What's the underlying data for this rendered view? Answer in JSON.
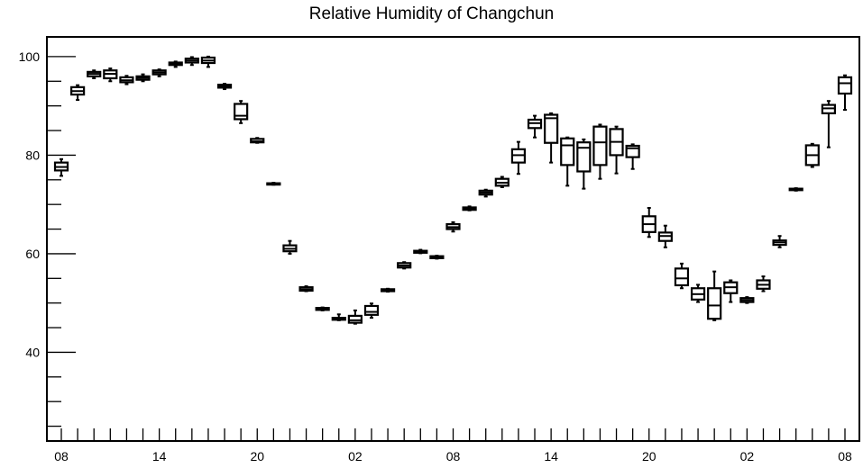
{
  "chart_data": {
    "type": "box",
    "title": "Relative Humidity of Changchun",
    "xlabel": "",
    "ylabel": "",
    "ylim": [
      22,
      104
    ],
    "xlim": [
      0,
      48
    ],
    "y_major_ticks": [
      40,
      60,
      80,
      100
    ],
    "y_minor_step": 5,
    "x_tick_labels": [
      {
        "hour": 0,
        "label": "08"
      },
      {
        "hour": 6,
        "label": "14"
      },
      {
        "hour": 12,
        "label": "20"
      },
      {
        "hour": 18,
        "label": "02"
      },
      {
        "hour": 24,
        "label": "08"
      },
      {
        "hour": 30,
        "label": "14"
      },
      {
        "hour": 36,
        "label": "20"
      },
      {
        "hour": 42,
        "label": "02"
      },
      {
        "hour": 48,
        "label": "08"
      }
    ],
    "boxes": [
      {
        "hour": 0,
        "min": 75.8,
        "q1": 76.9,
        "median": 77.6,
        "q3": 78.5,
        "max": 79.2
      },
      {
        "hour": 1,
        "min": 91.2,
        "q1": 92.3,
        "median": 93.0,
        "q3": 93.8,
        "max": 94.2
      },
      {
        "hour": 2,
        "min": 95.6,
        "q1": 96.0,
        "median": 96.5,
        "q3": 96.9,
        "max": 97.2
      },
      {
        "hour": 3,
        "min": 95.0,
        "q1": 95.6,
        "median": 96.5,
        "q3": 97.2,
        "max": 97.6
      },
      {
        "hour": 4,
        "min": 94.4,
        "q1": 94.8,
        "median": 95.2,
        "q3": 95.8,
        "max": 96.1
      },
      {
        "hour": 5,
        "min": 95.0,
        "q1": 95.3,
        "median": 95.7,
        "q3": 96.0,
        "max": 96.4
      },
      {
        "hour": 6,
        "min": 96.0,
        "q1": 96.4,
        "median": 96.8,
        "q3": 97.2,
        "max": 97.4
      },
      {
        "hour": 7,
        "min": 97.9,
        "q1": 98.3,
        "median": 98.6,
        "q3": 98.8,
        "max": 99.0
      },
      {
        "hour": 8,
        "min": 98.3,
        "q1": 98.8,
        "median": 99.2,
        "q3": 99.6,
        "max": 99.9
      },
      {
        "hour": 9,
        "min": 97.9,
        "q1": 98.7,
        "median": 99.2,
        "q3": 99.8,
        "max": 100.0
      },
      {
        "hour": 10,
        "min": 93.4,
        "q1": 93.7,
        "median": 94.0,
        "q3": 94.3,
        "max": 94.5
      },
      {
        "hour": 11,
        "min": 86.5,
        "q1": 87.3,
        "median": 88.0,
        "q3": 90.4,
        "max": 91.0
      },
      {
        "hour": 12,
        "min": 82.5,
        "q1": 82.6,
        "median": 82.8,
        "q3": 83.3,
        "max": 83.5
      },
      {
        "hour": 13,
        "min": 74.0,
        "q1": 74.1,
        "median": 74.2,
        "q3": 74.3,
        "max": 74.4
      },
      {
        "hour": 14,
        "min": 60.0,
        "q1": 60.5,
        "median": 61.0,
        "q3": 61.7,
        "max": 62.6
      },
      {
        "hour": 15,
        "min": 52.4,
        "q1": 52.5,
        "median": 52.8,
        "q3": 53.2,
        "max": 53.4
      },
      {
        "hour": 16,
        "min": 48.5,
        "q1": 48.6,
        "median": 48.8,
        "q3": 49.0,
        "max": 49.1
      },
      {
        "hour": 17,
        "min": 46.5,
        "q1": 46.6,
        "median": 46.8,
        "q3": 47.0,
        "max": 47.7
      },
      {
        "hour": 18,
        "min": 45.8,
        "q1": 46.0,
        "median": 46.5,
        "q3": 47.4,
        "max": 48.5
      },
      {
        "hour": 19,
        "min": 47.0,
        "q1": 47.6,
        "median": 48.2,
        "q3": 49.4,
        "max": 49.9
      },
      {
        "hour": 20,
        "min": 52.3,
        "q1": 52.4,
        "median": 52.6,
        "q3": 52.8,
        "max": 52.9
      },
      {
        "hour": 21,
        "min": 57.0,
        "q1": 57.2,
        "median": 57.6,
        "q3": 58.1,
        "max": 58.3
      },
      {
        "hour": 22,
        "min": 60.1,
        "q1": 60.2,
        "median": 60.4,
        "q3": 60.6,
        "max": 60.8
      },
      {
        "hour": 23,
        "min": 59.0,
        "q1": 59.1,
        "median": 59.3,
        "q3": 59.5,
        "max": 59.6
      },
      {
        "hour": 24,
        "min": 64.5,
        "q1": 65.0,
        "median": 65.4,
        "q3": 66.0,
        "max": 66.4
      },
      {
        "hour": 25,
        "min": 68.8,
        "q1": 68.9,
        "median": 69.1,
        "q3": 69.4,
        "max": 69.6
      },
      {
        "hour": 26,
        "min": 71.6,
        "q1": 72.0,
        "median": 72.4,
        "q3": 72.8,
        "max": 73.0
      },
      {
        "hour": 27,
        "min": 73.5,
        "q1": 73.8,
        "median": 74.4,
        "q3": 75.2,
        "max": 75.6
      },
      {
        "hour": 28,
        "min": 76.2,
        "q1": 78.5,
        "median": 80.0,
        "q3": 81.2,
        "max": 82.7
      },
      {
        "hour": 29,
        "min": 83.6,
        "q1": 85.5,
        "median": 86.5,
        "q3": 87.2,
        "max": 88.0
      },
      {
        "hour": 30,
        "min": 78.5,
        "q1": 82.5,
        "median": 87.5,
        "q3": 88.2,
        "max": 88.5
      },
      {
        "hour": 31,
        "min": 73.8,
        "q1": 78.0,
        "median": 82.0,
        "q3": 83.4,
        "max": 83.6
      },
      {
        "hour": 32,
        "min": 73.2,
        "q1": 76.7,
        "median": 81.5,
        "q3": 82.6,
        "max": 83.2
      },
      {
        "hour": 33,
        "min": 75.2,
        "q1": 78.0,
        "median": 82.6,
        "q3": 85.8,
        "max": 86.2
      },
      {
        "hour": 34,
        "min": 76.3,
        "q1": 80.0,
        "median": 82.7,
        "q3": 85.3,
        "max": 85.8
      },
      {
        "hour": 35,
        "min": 77.2,
        "q1": 79.6,
        "median": 81.4,
        "q3": 81.9,
        "max": 82.2
      },
      {
        "hour": 36,
        "min": 63.4,
        "q1": 64.4,
        "median": 66.0,
        "q3": 67.6,
        "max": 69.3
      },
      {
        "hour": 37,
        "min": 61.3,
        "q1": 62.6,
        "median": 63.6,
        "q3": 64.3,
        "max": 65.7
      },
      {
        "hour": 38,
        "min": 53.0,
        "q1": 53.6,
        "median": 55.0,
        "q3": 57.0,
        "max": 58.0
      },
      {
        "hour": 39,
        "min": 50.2,
        "q1": 50.7,
        "median": 51.8,
        "q3": 53.0,
        "max": 53.7
      },
      {
        "hour": 40,
        "min": 46.5,
        "q1": 46.8,
        "median": 49.5,
        "q3": 53.0,
        "max": 56.4
      },
      {
        "hour": 41,
        "min": 50.2,
        "q1": 52.0,
        "median": 53.2,
        "q3": 54.2,
        "max": 54.6
      },
      {
        "hour": 42,
        "min": 50.0,
        "q1": 50.2,
        "median": 50.6,
        "q3": 51.0,
        "max": 51.2
      },
      {
        "hour": 43,
        "min": 52.4,
        "q1": 52.9,
        "median": 53.7,
        "q3": 54.6,
        "max": 55.4
      },
      {
        "hour": 44,
        "min": 61.3,
        "q1": 61.8,
        "median": 62.3,
        "q3": 62.7,
        "max": 63.6
      },
      {
        "hour": 45,
        "min": 72.8,
        "q1": 72.9,
        "median": 73.0,
        "q3": 73.2,
        "max": 73.3
      },
      {
        "hour": 46,
        "min": 77.6,
        "q1": 78.0,
        "median": 80.0,
        "q3": 82.0,
        "max": 82.3
      },
      {
        "hour": 47,
        "min": 81.6,
        "q1": 88.5,
        "median": 89.5,
        "q3": 90.2,
        "max": 91.0
      },
      {
        "hour": 48,
        "min": 89.2,
        "q1": 92.5,
        "median": 94.6,
        "q3": 95.8,
        "max": 96.2
      }
    ]
  }
}
